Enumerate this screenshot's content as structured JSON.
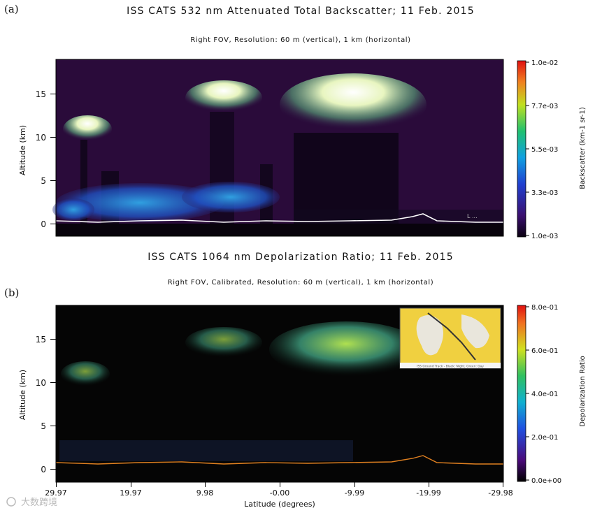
{
  "chart_data": [
    {
      "type": "heatmap",
      "panel_label": "(a)",
      "title": "ISS CATS 532 nm Attenuated Total Backscatter; 11 Feb. 2015",
      "subtitle": "Right FOV, Resolution: 60 m (vertical), 1 km (horizontal)",
      "ylabel": "Altitude (km)",
      "yticks": [
        "0",
        "5",
        "10",
        "15"
      ],
      "ylim": [
        -1,
        19
      ],
      "colorbar": {
        "label": "Backscatter (km-1 sr-1)",
        "ticks": [
          "1.0e-02",
          "7.7e-03",
          "5.5e-03",
          "3.3e-03",
          "1.0e-03"
        ],
        "range": [
          0.001,
          0.01
        ]
      },
      "features": [
        {
          "name": "low aerosol/cloud layer",
          "alt_km": [
            0,
            3
          ]
        },
        {
          "name": "high cirrus",
          "alt_km": [
            10,
            18
          ]
        }
      ],
      "watermark_text": "L ..."
    },
    {
      "type": "heatmap",
      "panel_label": "(b)",
      "title": "ISS CATS 1064 nm Depolarization Ratio; 11 Feb. 2015",
      "subtitle": "Right FOV, Calibrated, Resolution: 60 m (vertical), 1 km (horizontal)",
      "ylabel": "Altitude (km)",
      "yticks": [
        "0",
        "5",
        "10",
        "15"
      ],
      "ylim": [
        -1,
        19
      ],
      "xlabel": "Latitude (degrees)",
      "xticks": [
        "29.97",
        "19.97",
        "9.98",
        "-0.00",
        "-9.99",
        "-19.99",
        "-29.98"
      ],
      "colorbar": {
        "label": "Depolarization Ratio",
        "ticks": [
          "8.0e-01",
          "6.0e-01",
          "4.0e-01",
          "2.0e-01",
          "0.0e+00"
        ],
        "range": [
          0,
          0.8
        ]
      },
      "inset_caption": "ISS Ground Track - Black: Night, Green: Day"
    }
  ],
  "watermark": "大数跨境"
}
